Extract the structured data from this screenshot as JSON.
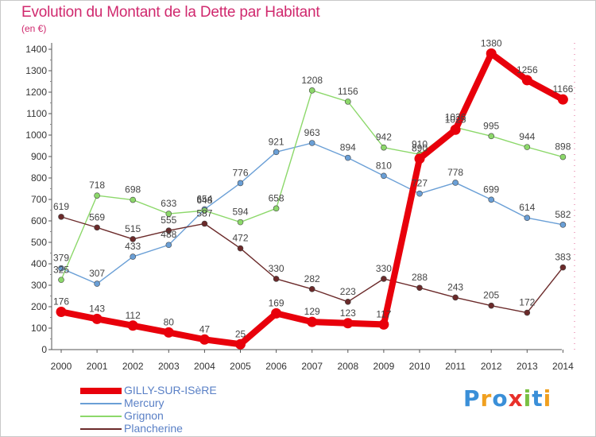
{
  "chart_data": {
    "type": "line",
    "title": "Evolution du Montant de la Dette par Habitant",
    "subtitle": "(en €)",
    "x": [
      "2000",
      "2001",
      "2002",
      "2003",
      "2004",
      "2005",
      "2006",
      "2007",
      "2008",
      "2009",
      "2010",
      "2011",
      "2012",
      "2013",
      "2014"
    ],
    "ylim": [
      0,
      1400
    ],
    "yticks": [
      0,
      100,
      200,
      300,
      400,
      500,
      600,
      700,
      800,
      900,
      1000,
      1100,
      1200,
      1300,
      1400
    ],
    "grid": false,
    "legend_position": "bottom-left",
    "series": [
      {
        "name": "GILLY-SUR-ISèRE",
        "color": "#e8000b",
        "values": [
          176,
          143,
          112,
          80,
          47,
          25,
          169,
          129,
          123,
          117,
          890,
          1025,
          1380,
          1256,
          1166
        ]
      },
      {
        "name": "Mercury",
        "color": "#6a9fd6",
        "values": [
          379,
          307,
          433,
          488,
          654,
          776,
          921,
          963,
          894,
          810,
          727,
          778,
          699,
          614,
          582
        ]
      },
      {
        "name": "Grignon",
        "color": "#8cd86a",
        "values": [
          325,
          718,
          698,
          633,
          648,
          594,
          658,
          1208,
          1156,
          942,
          910,
          1036,
          995,
          944,
          898
        ]
      },
      {
        "name": "Plancherine",
        "color": "#6b2a2a",
        "values": [
          619,
          569,
          515,
          555,
          587,
          472,
          330,
          282,
          223,
          330,
          288,
          243,
          205,
          172,
          383
        ]
      }
    ]
  },
  "branding": {
    "logo_letters": [
      "P",
      "r",
      "o",
      "x",
      "i",
      "t",
      "i"
    ],
    "logo_colors": [
      "#3a8fd8",
      "#f0a020",
      "#3a8fd8",
      "#e8302a",
      "#7ac043",
      "#3a8fd8",
      "#f0a020"
    ]
  }
}
